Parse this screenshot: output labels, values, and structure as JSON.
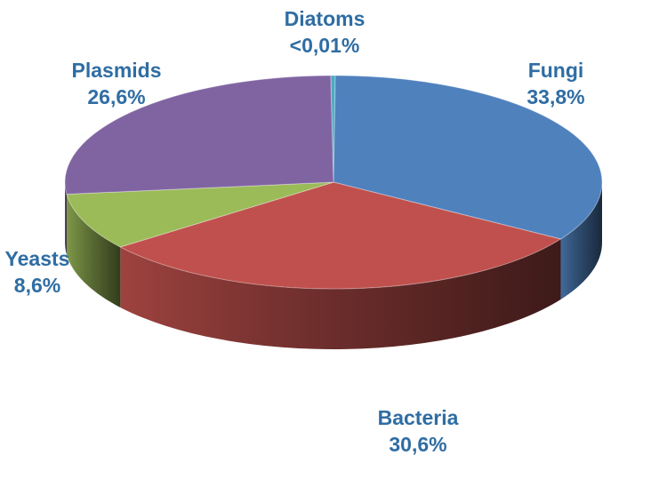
{
  "chart_data": {
    "type": "pie",
    "style": "3d",
    "title": "",
    "slices": [
      {
        "key": "diatoms",
        "label": "Diatoms",
        "value_text": "<0,01%",
        "value": 0.01,
        "color": "#4bacc6"
      },
      {
        "key": "fungi",
        "label": "Fungi",
        "value_text": "33,8%",
        "value": 33.8,
        "color": "#4f81bd"
      },
      {
        "key": "bacteria",
        "label": "Bacteria",
        "value_text": "30,6%",
        "value": 30.6,
        "color": "#c0504d"
      },
      {
        "key": "yeasts",
        "label": "Yeasts",
        "value_text": "8,6%",
        "value": 8.6,
        "color": "#9bbb59"
      },
      {
        "key": "plasmids",
        "label": "Plasmids",
        "value_text": "26,6%",
        "value": 26.6,
        "color": "#8064a2"
      }
    ],
    "label_color": "#2f6da3"
  }
}
